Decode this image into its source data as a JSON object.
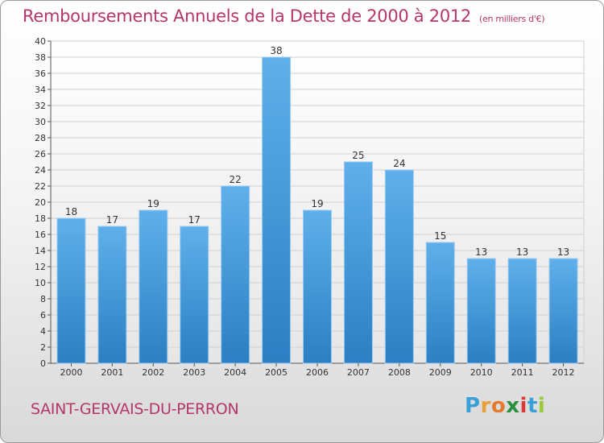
{
  "header": {
    "title": "Remboursements Annuels de la Dette de 2000 à 2012",
    "unit": "(en milliers d'€)"
  },
  "footer": {
    "commune": "SAINT-GERVAIS-DU-PERRON"
  },
  "logo": {
    "text": "Proxiti",
    "letters": [
      {
        "ch": "P",
        "color": "#3aa0d8"
      },
      {
        "ch": "r",
        "color": "#e7a23a"
      },
      {
        "ch": "o",
        "color": "#e47a2e"
      },
      {
        "ch": "x",
        "color": "#2a8f3a"
      },
      {
        "ch": "i",
        "color": "#d93b3b"
      },
      {
        "ch": "t",
        "color": "#3aa0d8"
      },
      {
        "ch": "i",
        "color": "#9bc93a"
      }
    ]
  },
  "colors": {
    "title": "#b5366a",
    "bar_top": "#5fb0ea",
    "bar_bottom": "#2b7fc2",
    "grid": "#d0d0d0"
  },
  "chart_data": {
    "type": "bar",
    "title": "Remboursements Annuels de la Dette de 2000 à 2012",
    "subtitle": "(en milliers d'€)",
    "categories": [
      "2000",
      "2001",
      "2002",
      "2003",
      "2004",
      "2005",
      "2006",
      "2007",
      "2008",
      "2009",
      "2010",
      "2011",
      "2012"
    ],
    "values": [
      18,
      17,
      19,
      17,
      22,
      38,
      19,
      25,
      24,
      15,
      13,
      13,
      13
    ],
    "ylim": [
      0,
      40
    ],
    "yticks": [
      0,
      2,
      4,
      6,
      8,
      10,
      12,
      14,
      16,
      18,
      20,
      22,
      24,
      26,
      28,
      30,
      32,
      34,
      36,
      38,
      40
    ],
    "grid": true,
    "data_labels": true
  }
}
